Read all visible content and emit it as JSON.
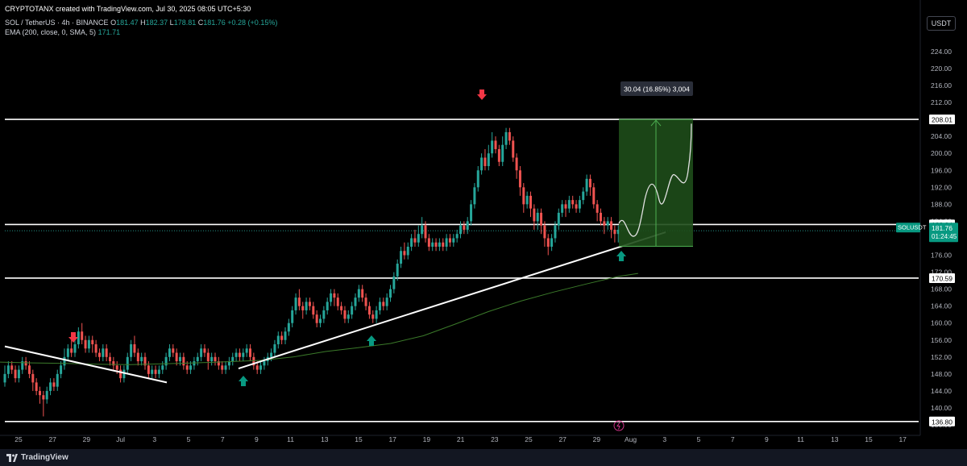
{
  "header": {
    "credit": "CRYPTOTANX created with TradingView.com, Jul 30, 2025 08:05 UTC+5:30",
    "symbol": "SOL / TetherUS · 4h · BINANCE",
    "ohlc": {
      "o_label": "O",
      "o": "181.47",
      "h_label": "H",
      "h": "182.37",
      "l_label": "L",
      "l": "178.81",
      "c_label": "C",
      "c": "181.76",
      "change": "+0.28 (+0.15%)"
    },
    "ema_label": "EMA (200, close, 0, SMA, 5)",
    "ema_value": "171.71"
  },
  "price_scale": {
    "unit": "USDT",
    "ticks": [
      "224.00",
      "220.00",
      "216.00",
      "212.00",
      "208.00",
      "204.00",
      "200.00",
      "196.00",
      "192.00",
      "188.00",
      "184.00",
      "180.00",
      "176.00",
      "172.00",
      "168.00",
      "164.00",
      "160.00",
      "156.00",
      "152.00",
      "148.00",
      "144.00",
      "140.00",
      "136.00"
    ],
    "levels": [
      {
        "value": 208.01,
        "label": "208.01"
      },
      {
        "value": 183.24,
        "label": "183.24"
      },
      {
        "value": 170.59,
        "label": "170.59"
      },
      {
        "value": 136.8,
        "label": "136.80"
      }
    ],
    "current": {
      "symbol": "SOLUSDT",
      "price": "181.76",
      "countdown": "01:24:45",
      "value": 181.76
    }
  },
  "time_axis": [
    "25",
    "27",
    "29",
    "Jul",
    "3",
    "5",
    "7",
    "9",
    "11",
    "13",
    "15",
    "17",
    "19",
    "21",
    "23",
    "25",
    "27",
    "29",
    "Aug",
    "3",
    "5",
    "7",
    "9",
    "11",
    "13",
    "15",
    "17"
  ],
  "measure_label": "30.04 (16.85%) 3,004",
  "footer": {
    "brand": "TradingView"
  },
  "colors": {
    "background": "#000000",
    "bull": "#26a69a",
    "bear": "#ef5350",
    "ema": "#3b7a2a",
    "measure_fill": "#1e4d1a",
    "measure_line": "#4caf50",
    "signal_up": "#089981",
    "signal_down": "#f23645"
  },
  "chart_data": {
    "type": "candlestick",
    "timeframe": "4h",
    "ylim": [
      134,
      228
    ],
    "levels": [
      208.01,
      183.24,
      170.59,
      136.8
    ],
    "ema": [
      [
        0,
        150.8
      ],
      [
        20,
        150.6
      ],
      [
        40,
        150.5
      ],
      [
        60,
        150.3
      ],
      [
        80,
        150.2
      ],
      [
        100,
        150.4
      ],
      [
        120,
        150.6
      ],
      [
        140,
        150.9
      ],
      [
        160,
        151.2
      ],
      [
        180,
        152.0
      ],
      [
        200,
        153.3
      ],
      [
        220,
        154.2
      ],
      [
        240,
        155.2
      ],
      [
        260,
        157.0
      ],
      [
        280,
        159.8
      ],
      [
        300,
        162.7
      ],
      [
        320,
        165.2
      ],
      [
        340,
        167.3
      ],
      [
        360,
        169.2
      ],
      [
        380,
        171.0
      ],
      [
        392,
        171.71
      ]
    ],
    "candles": [
      [
        0,
        146,
        148,
        150,
        145
      ],
      [
        1,
        148,
        150,
        151,
        147
      ],
      [
        2,
        150,
        149,
        151,
        148
      ],
      [
        3,
        149,
        147,
        150,
        146
      ],
      [
        4,
        147,
        149,
        150,
        146
      ],
      [
        5,
        149,
        151,
        152,
        148
      ],
      [
        6,
        151,
        150,
        152,
        149
      ],
      [
        7,
        150,
        148,
        151,
        147
      ],
      [
        8,
        148,
        146,
        149,
        144
      ],
      [
        9,
        146,
        144,
        147,
        143
      ],
      [
        10,
        144,
        143,
        145,
        141
      ],
      [
        11,
        143,
        142,
        144,
        138
      ],
      [
        12,
        142,
        144,
        145,
        141
      ],
      [
        13,
        144,
        146,
        147,
        143
      ],
      [
        14,
        146,
        145,
        147,
        144
      ],
      [
        15,
        145,
        148,
        149,
        144
      ],
      [
        16,
        148,
        150,
        151,
        147
      ],
      [
        17,
        150,
        152,
        154,
        149
      ],
      [
        18,
        152,
        154,
        155,
        151
      ],
      [
        19,
        154,
        153,
        156,
        152
      ],
      [
        20,
        153,
        155,
        157,
        152
      ],
      [
        21,
        155,
        158,
        159,
        154
      ],
      [
        22,
        158,
        156,
        160,
        155
      ],
      [
        23,
        156,
        154,
        157,
        153
      ],
      [
        24,
        154,
        156,
        157,
        153
      ],
      [
        25,
        156,
        155,
        157,
        153
      ],
      [
        26,
        155,
        153,
        156,
        152
      ],
      [
        27,
        153,
        152,
        154,
        151
      ],
      [
        28,
        152,
        154,
        155,
        151
      ],
      [
        29,
        154,
        152,
        155,
        151
      ],
      [
        30,
        152,
        151,
        153,
        150
      ],
      [
        31,
        151,
        150,
        152,
        149
      ],
      [
        32,
        150,
        149,
        151,
        148
      ],
      [
        33,
        149,
        147,
        150,
        146
      ],
      [
        34,
        147,
        149,
        150,
        146
      ],
      [
        35,
        149,
        152,
        153,
        148
      ],
      [
        36,
        152,
        155,
        156,
        151
      ],
      [
        37,
        155,
        153,
        157,
        152
      ],
      [
        38,
        153,
        151,
        154,
        150
      ],
      [
        39,
        151,
        152,
        153,
        150
      ],
      [
        40,
        152,
        150,
        153,
        149
      ],
      [
        41,
        150,
        148,
        151,
        147
      ],
      [
        42,
        148,
        149,
        150,
        147
      ],
      [
        43,
        149,
        148,
        150,
        147
      ],
      [
        44,
        148,
        149,
        150,
        147
      ],
      [
        45,
        149,
        150,
        151,
        148
      ],
      [
        46,
        150,
        152,
        153,
        149
      ],
      [
        47,
        152,
        154,
        155,
        151
      ],
      [
        48,
        154,
        153,
        155,
        152
      ],
      [
        49,
        153,
        151,
        154,
        150
      ],
      [
        50,
        151,
        152,
        153,
        150
      ],
      [
        51,
        152,
        150,
        153,
        149
      ],
      [
        52,
        150,
        149,
        151,
        148
      ],
      [
        53,
        149,
        150,
        151,
        148
      ],
      [
        54,
        150,
        151,
        152,
        149
      ],
      [
        55,
        151,
        152,
        153,
        150
      ],
      [
        56,
        152,
        154,
        155,
        151
      ],
      [
        57,
        154,
        153,
        155,
        152
      ],
      [
        58,
        153,
        151,
        154,
        149
      ],
      [
        59,
        151,
        152,
        153,
        150
      ],
      [
        60,
        152,
        151,
        153,
        150
      ],
      [
        61,
        151,
        150,
        152,
        149
      ],
      [
        62,
        150,
        149,
        151,
        148
      ],
      [
        63,
        149,
        150,
        151,
        148
      ],
      [
        64,
        150,
        151,
        152,
        149
      ],
      [
        65,
        151,
        152,
        153,
        150
      ],
      [
        66,
        152,
        153,
        154,
        151
      ],
      [
        67,
        153,
        152,
        154,
        151
      ],
      [
        68,
        152,
        153,
        154,
        151
      ],
      [
        69,
        153,
        154,
        155,
        152
      ],
      [
        70,
        154,
        152,
        155,
        151
      ],
      [
        71,
        152,
        150,
        153,
        149
      ],
      [
        72,
        150,
        149,
        151,
        148
      ],
      [
        73,
        149,
        150,
        151,
        148
      ],
      [
        74,
        150,
        151,
        152,
        149
      ],
      [
        75,
        151,
        152,
        153,
        150
      ],
      [
        76,
        152,
        153,
        154,
        151
      ],
      [
        77,
        153,
        155,
        156,
        152
      ],
      [
        78,
        155,
        157,
        158,
        154
      ],
      [
        79,
        157,
        156,
        158,
        155
      ],
      [
        80,
        156,
        158,
        159,
        155
      ],
      [
        81,
        158,
        160,
        161,
        157
      ],
      [
        82,
        160,
        163,
        164,
        159
      ],
      [
        83,
        163,
        166,
        167,
        162
      ],
      [
        84,
        166,
        164,
        168,
        163
      ],
      [
        85,
        164,
        163,
        165,
        161
      ],
      [
        86,
        163,
        165,
        166,
        162
      ],
      [
        87,
        165,
        164,
        166,
        163
      ],
      [
        88,
        164,
        162,
        165,
        161
      ],
      [
        89,
        162,
        160,
        163,
        159
      ],
      [
        90,
        160,
        161,
        162,
        159
      ],
      [
        91,
        161,
        163,
        164,
        160
      ],
      [
        92,
        163,
        165,
        166,
        162
      ],
      [
        93,
        165,
        167,
        168,
        164
      ],
      [
        94,
        167,
        166,
        168,
        164
      ],
      [
        95,
        166,
        164,
        167,
        163
      ],
      [
        96,
        164,
        163,
        165,
        162
      ],
      [
        97,
        163,
        161,
        164,
        160
      ],
      [
        98,
        161,
        162,
        163,
        160
      ],
      [
        99,
        162,
        164,
        165,
        161
      ],
      [
        100,
        164,
        166,
        167,
        163
      ],
      [
        101,
        166,
        168,
        169,
        165
      ],
      [
        102,
        168,
        166,
        169,
        165
      ],
      [
        103,
        166,
        164,
        167,
        163
      ],
      [
        104,
        164,
        162,
        165,
        161
      ],
      [
        105,
        162,
        161,
        163,
        160
      ],
      [
        106,
        161,
        163,
        164,
        160
      ],
      [
        107,
        163,
        165,
        166,
        162
      ],
      [
        108,
        165,
        164,
        166,
        163
      ],
      [
        109,
        164,
        166,
        167,
        163
      ],
      [
        110,
        166,
        168,
        169,
        165
      ],
      [
        111,
        168,
        171,
        172,
        167
      ],
      [
        112,
        171,
        174,
        175,
        170
      ],
      [
        113,
        174,
        177,
        178,
        173
      ],
      [
        114,
        177,
        176,
        179,
        175
      ],
      [
        115,
        176,
        178,
        179,
        175
      ],
      [
        116,
        178,
        180,
        181,
        177
      ],
      [
        117,
        180,
        179,
        182,
        178
      ],
      [
        118,
        179,
        181,
        183,
        178
      ],
      [
        119,
        181,
        183,
        185,
        180
      ],
      [
        120,
        183,
        180,
        184,
        179
      ],
      [
        121,
        180,
        178,
        181,
        177
      ],
      [
        122,
        178,
        179,
        180,
        177
      ],
      [
        123,
        179,
        178,
        180,
        177
      ],
      [
        124,
        178,
        179,
        180,
        177
      ],
      [
        125,
        179,
        178,
        180,
        177
      ],
      [
        126,
        178,
        180,
        181,
        177
      ],
      [
        127,
        180,
        179,
        181,
        178
      ],
      [
        128,
        179,
        180,
        181,
        178
      ],
      [
        129,
        180,
        181,
        182,
        179
      ],
      [
        130,
        181,
        183,
        184,
        180
      ],
      [
        131,
        183,
        182,
        184,
        181
      ],
      [
        132,
        182,
        184,
        185,
        181
      ],
      [
        133,
        184,
        188,
        189,
        183
      ],
      [
        134,
        188,
        192,
        193,
        187
      ],
      [
        135,
        192,
        196,
        197,
        191
      ],
      [
        136,
        196,
        199,
        200,
        195
      ],
      [
        137,
        199,
        197,
        201,
        196
      ],
      [
        138,
        197,
        200,
        202,
        196
      ],
      [
        139,
        200,
        203,
        205,
        199
      ],
      [
        140,
        203,
        201,
        204,
        200
      ],
      [
        141,
        201,
        198,
        202,
        197
      ],
      [
        142,
        198,
        202,
        204,
        197
      ],
      [
        143,
        202,
        205,
        206,
        201
      ],
      [
        144,
        205,
        203,
        206,
        202
      ],
      [
        145,
        203,
        199,
        204,
        198
      ],
      [
        146,
        199,
        196,
        200,
        194
      ],
      [
        147,
        196,
        192,
        197,
        190
      ],
      [
        148,
        192,
        188,
        193,
        186
      ],
      [
        149,
        188,
        190,
        191,
        187
      ],
      [
        150,
        190,
        187,
        191,
        185
      ],
      [
        151,
        187,
        184,
        188,
        182
      ],
      [
        152,
        184,
        186,
        187,
        182
      ],
      [
        153,
        186,
        183,
        187,
        181
      ],
      [
        154,
        183,
        180,
        184,
        178
      ],
      [
        155,
        180,
        178,
        181,
        176
      ],
      [
        156,
        178,
        180,
        181,
        177
      ],
      [
        157,
        180,
        183,
        184,
        179
      ],
      [
        158,
        183,
        186,
        187,
        182
      ],
      [
        159,
        186,
        188,
        189,
        185
      ],
      [
        160,
        188,
        187,
        189,
        185
      ],
      [
        161,
        187,
        189,
        190,
        186
      ],
      [
        162,
        189,
        188,
        190,
        187
      ],
      [
        163,
        188,
        187,
        189,
        186
      ],
      [
        164,
        187,
        189,
        190,
        186
      ],
      [
        165,
        189,
        191,
        192,
        188
      ],
      [
        166,
        191,
        194,
        195,
        190
      ],
      [
        167,
        194,
        192,
        195,
        190
      ],
      [
        168,
        192,
        188,
        193,
        187
      ],
      [
        169,
        188,
        186,
        189,
        184
      ],
      [
        170,
        186,
        184,
        187,
        183
      ],
      [
        171,
        184,
        183,
        185,
        181
      ],
      [
        172,
        183,
        184,
        185,
        182
      ],
      [
        173,
        184,
        182,
        185,
        180
      ],
      [
        174,
        182,
        181,
        183,
        179
      ],
      [
        175,
        181,
        182,
        183,
        179
      ]
    ]
  }
}
